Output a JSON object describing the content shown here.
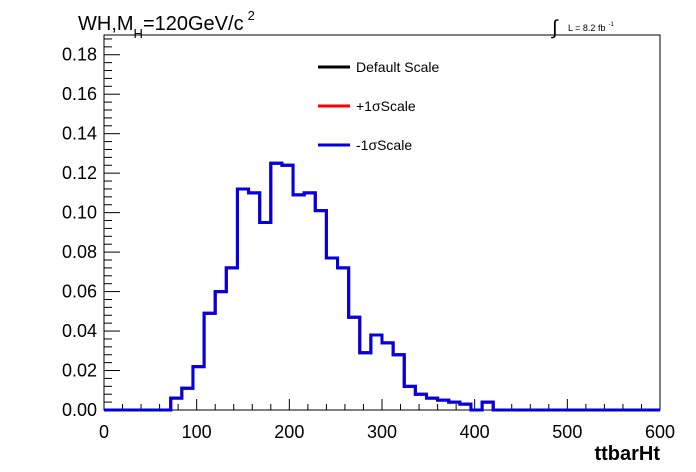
{
  "chart_data": {
    "type": "line",
    "title": {
      "prefix": "WH,M",
      "subscript": "H",
      "suffix": "=120GeV/c",
      "superscript": "2"
    },
    "luminosity_label": {
      "integral_sign": "∫",
      "text": "L = 8.2 fb",
      "superscript": "-1"
    },
    "xlabel": "ttbarHt",
    "ylabel": "",
    "xlim": [
      0,
      600
    ],
    "ylim": [
      0,
      0.19
    ],
    "x_ticks": [
      0,
      100,
      200,
      300,
      400,
      500,
      600
    ],
    "x_tick_labels": [
      "0",
      "100",
      "200",
      "300",
      "400",
      "500",
      "600"
    ],
    "y_ticks": [
      0,
      0.02,
      0.04,
      0.06,
      0.08,
      0.1,
      0.12,
      0.14,
      0.16,
      0.18
    ],
    "y_tick_labels": [
      "0.00",
      "0.02",
      "0.04",
      "0.06",
      "0.08",
      "0.10",
      "0.12",
      "0.14",
      "0.16",
      "0.18"
    ],
    "grid": false,
    "legend_position": "top-center",
    "bin_width": 12,
    "x_bin_edges_start": 0,
    "series": [
      {
        "name": "Default Scale",
        "color": "#000000",
        "values": [
          0,
          0,
          0,
          0,
          0,
          0,
          0.006,
          0.011,
          0.022,
          0.049,
          0.06,
          0.072,
          0.112,
          0.11,
          0.095,
          0.125,
          0.124,
          0.109,
          0.11,
          0.101,
          0.077,
          0.072,
          0.047,
          0.029,
          0.038,
          0.034,
          0.028,
          0.012,
          0.008,
          0.006,
          0.005,
          0.004,
          0.003,
          0.0,
          0.004,
          0.0,
          0.0,
          0.0,
          0.0,
          0.0,
          0.0,
          0.0,
          0.0,
          0.0,
          0.0,
          0.0,
          0.0,
          0.0,
          0.0,
          0.0
        ]
      },
      {
        "name": "+1σScale",
        "color": "#ff0000",
        "values": [
          0,
          0,
          0,
          0,
          0,
          0,
          0.006,
          0.011,
          0.022,
          0.049,
          0.06,
          0.072,
          0.112,
          0.11,
          0.095,
          0.125,
          0.124,
          0.109,
          0.11,
          0.101,
          0.077,
          0.072,
          0.047,
          0.029,
          0.038,
          0.034,
          0.028,
          0.012,
          0.008,
          0.006,
          0.005,
          0.004,
          0.003,
          0.0,
          0.004,
          0.0,
          0.0,
          0.0,
          0.0,
          0.0,
          0.0,
          0.0,
          0.0,
          0.0,
          0.0,
          0.0,
          0.0,
          0.0,
          0.0,
          0.0
        ]
      },
      {
        "name": "-1σScale",
        "color": "#0000e6",
        "values": [
          0,
          0,
          0,
          0,
          0,
          0,
          0.006,
          0.011,
          0.022,
          0.049,
          0.06,
          0.072,
          0.112,
          0.11,
          0.095,
          0.125,
          0.124,
          0.109,
          0.11,
          0.101,
          0.077,
          0.072,
          0.047,
          0.029,
          0.038,
          0.034,
          0.028,
          0.012,
          0.008,
          0.006,
          0.005,
          0.004,
          0.003,
          0.0,
          0.004,
          0.0,
          0.0,
          0.0,
          0.0,
          0.0,
          0.0,
          0.0,
          0.0,
          0.0,
          0.0,
          0.0,
          0.0,
          0.0,
          0.0,
          0.0
        ]
      }
    ]
  }
}
